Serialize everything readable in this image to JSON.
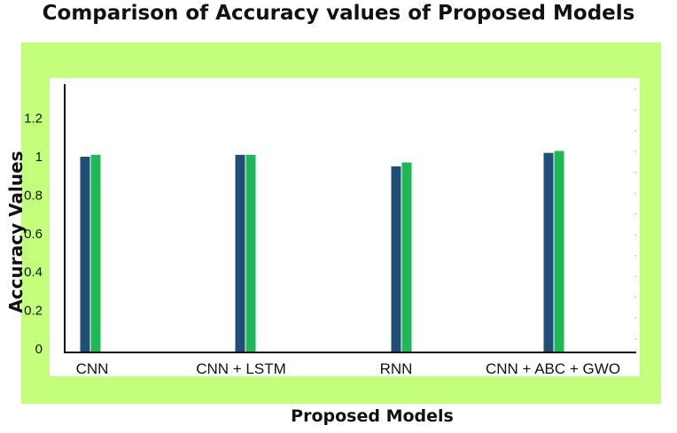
{
  "chart_data": {
    "type": "bar",
    "title": "Comparison of Accuracy values of Proposed Models",
    "xlabel": "Proposed Models",
    "ylabel": "Accuracy Values",
    "categories": [
      "CNN",
      "CNN + LSTM",
      "RNN",
      "CNN + ABC + GWO"
    ],
    "series": [
      {
        "values": [
          1.0,
          1.01,
          0.95,
          1.02
        ],
        "color": "#1f4e79"
      },
      {
        "values": [
          1.01,
          1.01,
          0.97,
          1.03
        ],
        "color": "#1db954"
      }
    ],
    "yticks": [
      "0",
      "0.2",
      "0.4",
      "0.6",
      "0.8",
      "1",
      "1.2"
    ],
    "ylim": [
      0,
      1.3
    ],
    "grid": false,
    "legend": "none"
  },
  "colors": {
    "frame": "#c3ff7a",
    "panel": "#ffffff"
  }
}
